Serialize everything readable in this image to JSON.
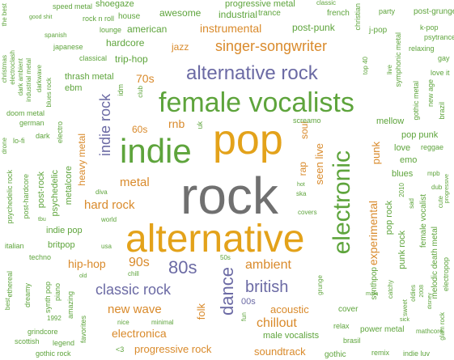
{
  "palette": {
    "gray": "#707070",
    "green": "#5ea43c",
    "orange": "#d98a2b",
    "purple": "#6b6aa4",
    "gold": "#e3a21a",
    "teal": "#3c9e78"
  },
  "tags": [
    {
      "text": "rock",
      "color": "gray"
    },
    {
      "text": "alternative",
      "color": "gold"
    },
    {
      "text": "pop",
      "color": "gold"
    },
    {
      "text": "female vocalists",
      "color": "green"
    },
    {
      "text": "indie",
      "color": "green"
    },
    {
      "text": "electronic",
      "color": "green"
    },
    {
      "text": "alternative rock",
      "color": "purple"
    },
    {
      "text": "singer-songwriter",
      "color": "orange"
    },
    {
      "text": "indie rock",
      "color": "purple"
    },
    {
      "text": "dance",
      "color": "purple"
    },
    {
      "text": "80s",
      "color": "purple"
    },
    {
      "text": "classic rock",
      "color": "purple"
    },
    {
      "text": "british",
      "color": "purple"
    },
    {
      "text": "hard rock",
      "color": "orange"
    },
    {
      "text": "metal",
      "color": "orange"
    },
    {
      "text": "experimental",
      "color": "orange"
    },
    {
      "text": "ambient",
      "color": "orange"
    },
    {
      "text": "chillout",
      "color": "orange"
    },
    {
      "text": "new wave",
      "color": "orange"
    },
    {
      "text": "electronica",
      "color": "orange"
    },
    {
      "text": "progressive rock",
      "color": "orange"
    },
    {
      "text": "soundtrack",
      "color": "orange"
    },
    {
      "text": "acoustic",
      "color": "orange"
    },
    {
      "text": "instrumental",
      "color": "orange"
    },
    {
      "text": "hip-hop",
      "color": "orange"
    },
    {
      "text": "90s",
      "color": "orange"
    },
    {
      "text": "70s",
      "color": "orange"
    },
    {
      "text": "60s",
      "color": "orange"
    },
    {
      "text": "jazz",
      "color": "orange"
    },
    {
      "text": "rnb",
      "color": "orange"
    },
    {
      "text": "heavy metal",
      "color": "orange"
    },
    {
      "text": "seen live",
      "color": "orange"
    },
    {
      "text": "punk",
      "color": "orange"
    },
    {
      "text": "folk",
      "color": "orange"
    },
    {
      "text": "soul",
      "color": "orange"
    },
    {
      "text": "rap",
      "color": "orange"
    },
    {
      "text": "industrial",
      "color": "green"
    },
    {
      "text": "american",
      "color": "green"
    },
    {
      "text": "awesome",
      "color": "green"
    },
    {
      "text": "hardcore",
      "color": "green"
    },
    {
      "text": "trip-hop",
      "color": "green"
    },
    {
      "text": "indie pop",
      "color": "green"
    },
    {
      "text": "britpop",
      "color": "green"
    },
    {
      "text": "post-rock",
      "color": "green"
    },
    {
      "text": "psychedelic",
      "color": "green"
    },
    {
      "text": "metalcore",
      "color": "green"
    },
    {
      "text": "post-punk",
      "color": "green"
    },
    {
      "text": "pop punk",
      "color": "green"
    },
    {
      "text": "punk rock",
      "color": "green"
    },
    {
      "text": "pop rock",
      "color": "green"
    },
    {
      "text": "blues",
      "color": "green"
    },
    {
      "text": "emo",
      "color": "green"
    },
    {
      "text": "love",
      "color": "green"
    },
    {
      "text": "mellow",
      "color": "green"
    },
    {
      "text": "male vocalists",
      "color": "green"
    },
    {
      "text": "00s",
      "color": "purple"
    },
    {
      "text": "synthpop",
      "color": "green"
    },
    {
      "text": "female vocalist",
      "color": "green"
    },
    {
      "text": "melodic death metal",
      "color": "green"
    },
    {
      "text": "trance",
      "color": "green"
    },
    {
      "text": "french",
      "color": "green"
    },
    {
      "text": "house",
      "color": "green"
    },
    {
      "text": "j-pop",
      "color": "green"
    },
    {
      "text": "post-grunge",
      "color": "green"
    },
    {
      "text": "electropop",
      "color": "green"
    },
    {
      "text": "cover",
      "color": "green"
    },
    {
      "text": "power metal",
      "color": "green"
    },
    {
      "text": "remix",
      "color": "green"
    },
    {
      "text": "indie luv",
      "color": "green"
    },
    {
      "text": "gothic",
      "color": "green"
    },
    {
      "text": "relax",
      "color": "green"
    },
    {
      "text": "brasil",
      "color": "green"
    },
    {
      "text": "gothic rock",
      "color": "green"
    },
    {
      "text": "scottish",
      "color": "green"
    },
    {
      "text": "legend",
      "color": "green"
    },
    {
      "text": "grindcore",
      "color": "green"
    },
    {
      "text": "favorites",
      "color": "green"
    },
    {
      "text": "amazing",
      "color": "green"
    },
    {
      "text": "piano",
      "color": "green"
    },
    {
      "text": "synth pop",
      "color": "green"
    },
    {
      "text": "dreamy",
      "color": "green"
    },
    {
      "text": "ethereal",
      "color": "green"
    },
    {
      "text": "techno",
      "color": "green"
    },
    {
      "text": "italian",
      "color": "green"
    },
    {
      "text": "post-hardcore",
      "color": "green"
    },
    {
      "text": "psychedelic rock",
      "color": "green"
    },
    {
      "text": "lo-fi",
      "color": "green"
    },
    {
      "text": "german",
      "color": "green"
    },
    {
      "text": "doom metal",
      "color": "green"
    },
    {
      "text": "dark",
      "color": "green"
    },
    {
      "text": "electro",
      "color": "green"
    },
    {
      "text": "drone",
      "color": "green"
    },
    {
      "text": "christmas",
      "color": "green"
    },
    {
      "text": "electroclash",
      "color": "green"
    },
    {
      "text": "dark ambient",
      "color": "green"
    },
    {
      "text": "industrial metal",
      "color": "green"
    },
    {
      "text": "darkwave",
      "color": "green"
    },
    {
      "text": "blues rock",
      "color": "green"
    },
    {
      "text": "ebm",
      "color": "green"
    },
    {
      "text": "thrash metal",
      "color": "green"
    },
    {
      "text": "classical",
      "color": "green"
    },
    {
      "text": "japanese",
      "color": "green"
    },
    {
      "text": "spanish",
      "color": "green"
    },
    {
      "text": "good shit",
      "color": "green"
    },
    {
      "text": "speed metal",
      "color": "green"
    },
    {
      "text": "rock n roll",
      "color": "green"
    },
    {
      "text": "lounge",
      "color": "green"
    },
    {
      "text": "shoegaze",
      "color": "green"
    },
    {
      "text": "progressive metal",
      "color": "green"
    },
    {
      "text": "the best",
      "color": "green"
    },
    {
      "text": "party",
      "color": "green"
    },
    {
      "text": "classic",
      "color": "green"
    },
    {
      "text": "k-pop",
      "color": "green"
    },
    {
      "text": "psytrance",
      "color": "green"
    },
    {
      "text": "relaxing",
      "color": "green"
    },
    {
      "text": "gay",
      "color": "green"
    },
    {
      "text": "love it",
      "color": "green"
    },
    {
      "text": "new age",
      "color": "green"
    },
    {
      "text": "gothic metal",
      "color": "green"
    },
    {
      "text": "brazil",
      "color": "green"
    },
    {
      "text": "symphonic metal",
      "color": "green"
    },
    {
      "text": "christian",
      "color": "green"
    },
    {
      "text": "live",
      "color": "green"
    },
    {
      "text": "top 40",
      "color": "green"
    },
    {
      "text": "reggae",
      "color": "green"
    },
    {
      "text": "dub",
      "color": "green"
    },
    {
      "text": "mpb",
      "color": "green"
    },
    {
      "text": "cute",
      "color": "green"
    },
    {
      "text": "progressive",
      "color": "green"
    },
    {
      "text": "2010",
      "color": "green"
    },
    {
      "text": "sad",
      "color": "green"
    },
    {
      "text": "catchy",
      "color": "green"
    },
    {
      "text": "oldies",
      "color": "green"
    },
    {
      "text": "2008",
      "color": "green"
    },
    {
      "text": "sweet",
      "color": "green"
    },
    {
      "text": "disney",
      "color": "green"
    },
    {
      "text": "mathcore",
      "color": "green"
    },
    {
      "text": "glam rock",
      "color": "green"
    },
    {
      "text": "sick",
      "color": "green"
    },
    {
      "text": "male",
      "color": "green"
    },
    {
      "text": "grunge",
      "color": "green"
    },
    {
      "text": "screamo",
      "color": "green"
    },
    {
      "text": "uk",
      "color": "green"
    },
    {
      "text": "idm",
      "color": "green"
    },
    {
      "text": "club",
      "color": "green"
    },
    {
      "text": "covers",
      "color": "green"
    },
    {
      "text": "ska",
      "color": "green"
    },
    {
      "text": "hot",
      "color": "green"
    },
    {
      "text": "diva",
      "color": "green"
    },
    {
      "text": "world",
      "color": "green"
    },
    {
      "text": "tbu",
      "color": "green"
    },
    {
      "text": "usa",
      "color": "green"
    },
    {
      "text": "chill",
      "color": "green"
    },
    {
      "text": "old",
      "color": "green"
    },
    {
      "text": "50s",
      "color": "green"
    },
    {
      "text": "minimal",
      "color": "green"
    },
    {
      "text": "nice",
      "color": "green"
    },
    {
      "text": "fun",
      "color": "green"
    },
    {
      "text": "1992",
      "color": "green"
    },
    {
      "text": "<3",
      "color": "green"
    },
    {
      "text": "best",
      "color": "green"
    }
  ]
}
